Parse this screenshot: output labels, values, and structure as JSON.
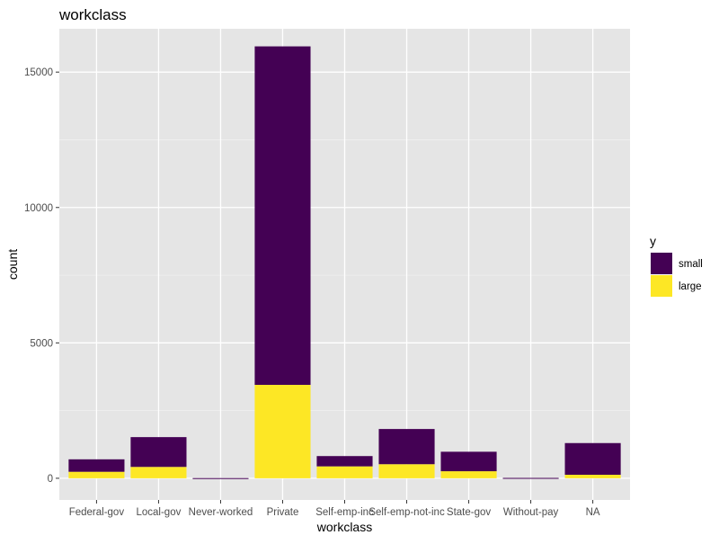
{
  "chart_data": {
    "type": "bar",
    "stacked": true,
    "title": "workclass",
    "xlabel": "workclass",
    "ylabel": "count",
    "categories": [
      "Federal-gov",
      "Local-gov",
      "Never-worked",
      "Private",
      "Self-emp-inc",
      "Self-emp-not-inc",
      "State-gov",
      "Without-pay",
      "NA"
    ],
    "series": [
      {
        "name": "small",
        "color": "#440154",
        "values": [
          460,
          1100,
          7,
          12500,
          380,
          1300,
          720,
          14,
          1170
        ]
      },
      {
        "name": "large",
        "color": "#FDE725",
        "values": [
          240,
          420,
          0,
          3450,
          440,
          520,
          260,
          0,
          130
        ]
      }
    ],
    "ylim": [
      -800,
      16600
    ],
    "yticks": [
      0,
      5000,
      10000,
      15000
    ],
    "ytick_labels": [
      "0",
      "5000",
      "10000",
      "15000"
    ],
    "grid": true,
    "panel_background": "#E5E5E5",
    "legend": {
      "title": "y",
      "position": "right",
      "entries": [
        "small",
        "large"
      ]
    }
  }
}
